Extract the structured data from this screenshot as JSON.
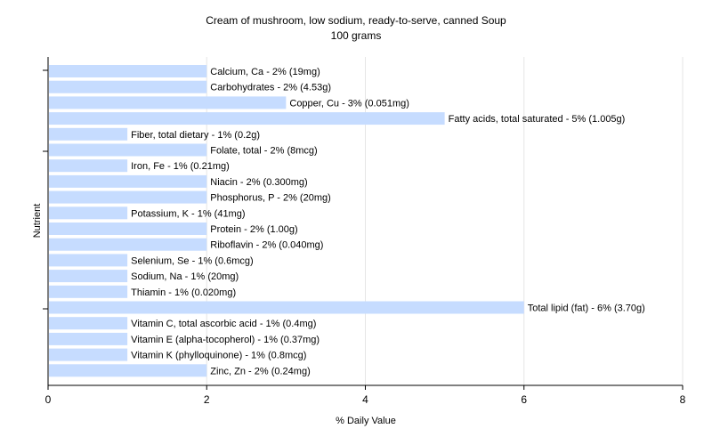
{
  "chart_data": {
    "type": "bar",
    "orientation": "horizontal",
    "title": "Cream of mushroom, low sodium, ready-to-serve, canned Soup",
    "subtitle": "100 grams",
    "xlabel": "% Daily Value",
    "ylabel": "Nutrient",
    "xlim": [
      0,
      8
    ],
    "xticks": [
      "0",
      "2",
      "4",
      "6",
      "8"
    ],
    "grid": true,
    "bar_color": "#c6dcff",
    "categories": [
      "Calcium, Ca",
      "Carbohydrates",
      "Copper, Cu",
      "Fatty acids, total saturated",
      "Fiber, total dietary",
      "Folate, total",
      "Iron, Fe",
      "Niacin",
      "Phosphorus, P",
      "Potassium, K",
      "Protein",
      "Riboflavin",
      "Selenium, Se",
      "Sodium, Na",
      "Thiamin",
      "Total lipid (fat)",
      "Vitamin C, total ascorbic acid",
      "Vitamin E (alpha-tocopherol)",
      "Vitamin K (phylloquinone)",
      "Zinc, Zn"
    ],
    "values": [
      2,
      2,
      3,
      5,
      1,
      2,
      1,
      2,
      2,
      1,
      2,
      2,
      1,
      1,
      1,
      6,
      1,
      1,
      1,
      2
    ],
    "labels": [
      "Calcium, Ca - 2% (19mg)",
      "Carbohydrates - 2% (4.53g)",
      "Copper, Cu - 3% (0.051mg)",
      "Fatty acids, total saturated - 5% (1.005g)",
      "Fiber, total dietary - 1% (0.2g)",
      "Folate, total - 2% (8mcg)",
      "Iron, Fe - 1% (0.21mg)",
      "Niacin - 2% (0.300mg)",
      "Phosphorus, P - 2% (20mg)",
      "Potassium, K - 1% (41mg)",
      "Protein - 2% (1.00g)",
      "Riboflavin - 2% (0.040mg)",
      "Selenium, Se - 1% (0.6mcg)",
      "Sodium, Na - 1% (20mg)",
      "Thiamin - 1% (0.020mg)",
      "Total lipid (fat) - 6% (3.70g)",
      "Vitamin C, total ascorbic acid - 1% (0.4mg)",
      "Vitamin E (alpha-tocopherol) - 1% (0.37mg)",
      "Vitamin K (phylloquinone) - 1% (0.8mcg)",
      "Zinc, Zn - 2% (0.24mg)"
    ]
  }
}
